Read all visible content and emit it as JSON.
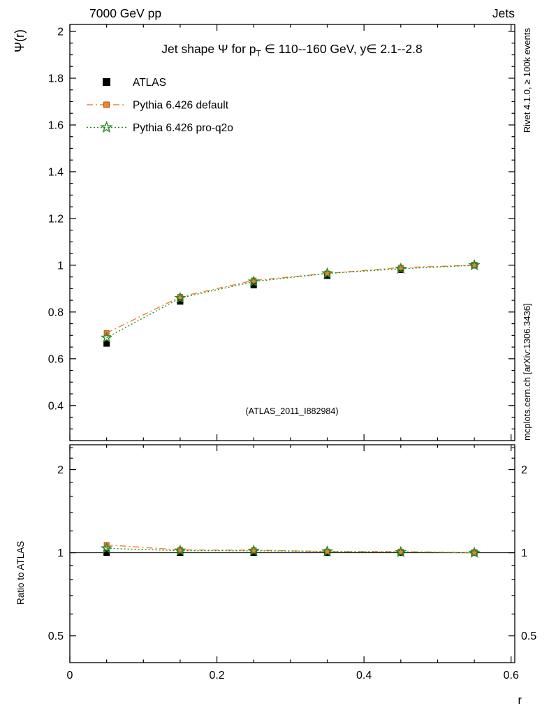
{
  "page": {
    "header_left": "7000 GeV pp",
    "header_right": "Jets",
    "right_margin_top": "Rivet 4.1.0, ≥ 100k events",
    "right_margin_bottom": "mcplots.cern.ch [arXiv:1306.3436]"
  },
  "chart_data": {
    "type": "line",
    "title_pre": "Jet shape Ψ for p",
    "title_sub": "T",
    "title_post": " ∈ 110--160 GeV, y∈ 2.1--2.8",
    "watermark": "(ATLAS_2011_I882984)",
    "xlabel": "r",
    "x": [
      0.05,
      0.15,
      0.25,
      0.35,
      0.45,
      0.55
    ],
    "xlim": [
      0,
      0.605
    ],
    "x_major_ticks": [
      0,
      0.2,
      0.4,
      0.6
    ],
    "x_minor_step": 0.05,
    "main_panel": {
      "ylabel": "Ψ(r)",
      "scale": "linear",
      "ylim": [
        0.25,
        2.03
      ],
      "y_major_ticks": [
        0.4,
        0.6,
        0.8,
        1,
        1.2,
        1.4,
        1.6,
        1.8,
        2
      ],
      "y_minor_step": 0.05
    },
    "ratio_panel": {
      "ylabel": "Ratio to ATLAS",
      "scale": "log",
      "ylim": [
        0.4,
        2.46
      ],
      "y_major_ticks": [
        0.5,
        1,
        2
      ],
      "y_minor_ticks": [
        0.6,
        0.7,
        0.8,
        0.9,
        1.2,
        1.4,
        1.6,
        1.8,
        2.2,
        2.4
      ],
      "reference_line": 1
    },
    "series": [
      {
        "name": "ATLAS",
        "color": "#000000",
        "marker": "square-filled",
        "line": "none",
        "values": [
          0.665,
          0.845,
          0.915,
          0.955,
          0.98,
          1.0
        ]
      },
      {
        "name": "Pythia 6.426 default",
        "color": "#f08332",
        "edge_color": "#a85a1e",
        "marker": "square-small",
        "line": "dash-dot",
        "values": [
          0.71,
          0.865,
          0.935,
          0.965,
          0.99,
          1.0
        ]
      },
      {
        "name": "Pythia 6.426 pro-q2o",
        "color": "#228b22",
        "marker": "star-open",
        "line": "dotted",
        "values": [
          0.69,
          0.86,
          0.93,
          0.965,
          0.985,
          1.0
        ]
      }
    ]
  }
}
